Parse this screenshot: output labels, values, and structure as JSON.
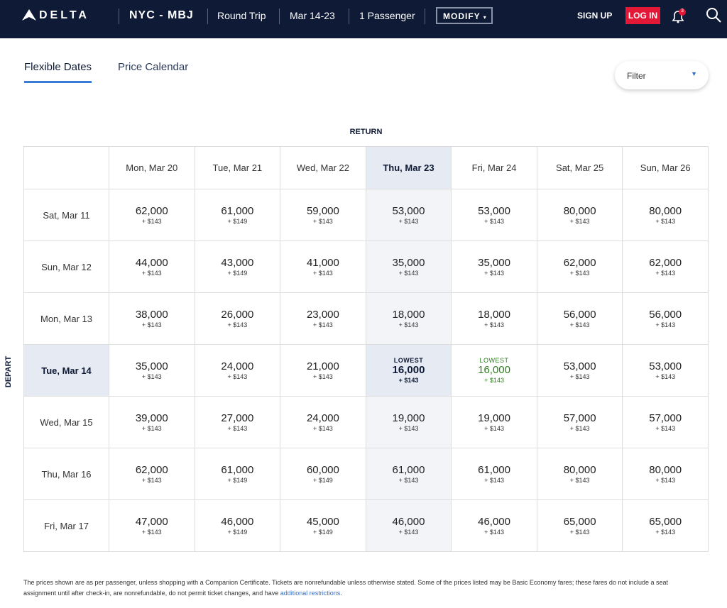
{
  "header": {
    "logo": "DELTA",
    "route": "NYC - MBJ",
    "trip_type": "Round Trip",
    "dates": "Mar 14-23",
    "passengers": "1 Passenger",
    "modify": "MODIFY",
    "sign_up": "SIGN UP",
    "log_in": "LOG IN",
    "notifications": "3"
  },
  "tabs": [
    "Flexible Dates",
    "Price Calendar"
  ],
  "filter": "Filter",
  "grid": {
    "return_label": "RETURN",
    "depart_label": "DEPART",
    "columns": [
      "Mon, Mar 20",
      "Tue, Mar 21",
      "Wed, Mar 22",
      "Thu, Mar 23",
      "Fri, Mar 24",
      "Sat, Mar 25",
      "Sun, Mar 26"
    ],
    "rows": [
      {
        "date": "Sat, Mar 11",
        "cells": [
          {
            "miles": "62,000",
            "fee": "+ $143"
          },
          {
            "miles": "61,000",
            "fee": "+ $149"
          },
          {
            "miles": "59,000",
            "fee": "+ $143"
          },
          {
            "miles": "53,000",
            "fee": "+ $143"
          },
          {
            "miles": "53,000",
            "fee": "+ $143"
          },
          {
            "miles": "80,000",
            "fee": "+ $143"
          },
          {
            "miles": "80,000",
            "fee": "+ $143"
          }
        ]
      },
      {
        "date": "Sun, Mar 12",
        "cells": [
          {
            "miles": "44,000",
            "fee": "+ $143"
          },
          {
            "miles": "43,000",
            "fee": "+ $149"
          },
          {
            "miles": "41,000",
            "fee": "+ $143"
          },
          {
            "miles": "35,000",
            "fee": "+ $143"
          },
          {
            "miles": "35,000",
            "fee": "+ $143"
          },
          {
            "miles": "62,000",
            "fee": "+ $143"
          },
          {
            "miles": "62,000",
            "fee": "+ $143"
          }
        ]
      },
      {
        "date": "Mon, Mar 13",
        "cells": [
          {
            "miles": "38,000",
            "fee": "+ $143"
          },
          {
            "miles": "26,000",
            "fee": "+ $143"
          },
          {
            "miles": "23,000",
            "fee": "+ $143"
          },
          {
            "miles": "18,000",
            "fee": "+ $143"
          },
          {
            "miles": "18,000",
            "fee": "+ $143"
          },
          {
            "miles": "56,000",
            "fee": "+ $143"
          },
          {
            "miles": "56,000",
            "fee": "+ $143"
          }
        ]
      },
      {
        "date": "Tue, Mar 14",
        "cells": [
          {
            "miles": "35,000",
            "fee": "+ $143"
          },
          {
            "miles": "24,000",
            "fee": "+ $143"
          },
          {
            "miles": "21,000",
            "fee": "+ $143"
          },
          {
            "badge": "LOWEST",
            "miles": "16,000",
            "fee": "+ $143"
          },
          {
            "badge": "LOWEST",
            "miles": "16,000",
            "fee": "+ $143"
          },
          {
            "miles": "53,000",
            "fee": "+ $143"
          },
          {
            "miles": "53,000",
            "fee": "+ $143"
          }
        ]
      },
      {
        "date": "Wed, Mar 15",
        "cells": [
          {
            "miles": "39,000",
            "fee": "+ $143"
          },
          {
            "miles": "27,000",
            "fee": "+ $143"
          },
          {
            "miles": "24,000",
            "fee": "+ $143"
          },
          {
            "miles": "19,000",
            "fee": "+ $143"
          },
          {
            "miles": "19,000",
            "fee": "+ $143"
          },
          {
            "miles": "57,000",
            "fee": "+ $143"
          },
          {
            "miles": "57,000",
            "fee": "+ $143"
          }
        ]
      },
      {
        "date": "Thu, Mar 16",
        "cells": [
          {
            "miles": "62,000",
            "fee": "+ $143"
          },
          {
            "miles": "61,000",
            "fee": "+ $149"
          },
          {
            "miles": "60,000",
            "fee": "+ $149"
          },
          {
            "miles": "61,000",
            "fee": "+ $143"
          },
          {
            "miles": "61,000",
            "fee": "+ $143"
          },
          {
            "miles": "80,000",
            "fee": "+ $143"
          },
          {
            "miles": "80,000",
            "fee": "+ $143"
          }
        ]
      },
      {
        "date": "Fri, Mar 17",
        "cells": [
          {
            "miles": "47,000",
            "fee": "+ $143"
          },
          {
            "miles": "46,000",
            "fee": "+ $149"
          },
          {
            "miles": "45,000",
            "fee": "+ $149"
          },
          {
            "miles": "46,000",
            "fee": "+ $143"
          },
          {
            "miles": "46,000",
            "fee": "+ $143"
          },
          {
            "miles": "65,000",
            "fee": "+ $143"
          },
          {
            "miles": "65,000",
            "fee": "+ $143"
          }
        ]
      }
    ]
  },
  "footer": {
    "text": "The prices shown are as per passenger, unless shopping with a Companion Certificate. Tickets are nonrefundable unless otherwise stated. Some of the prices listed may be Basic Economy fares; these fares do not include a seat assignment until after check-in, are nonrefundable, do not permit ticket changes, and have ",
    "link": "additional restrictions",
    "end": "."
  }
}
